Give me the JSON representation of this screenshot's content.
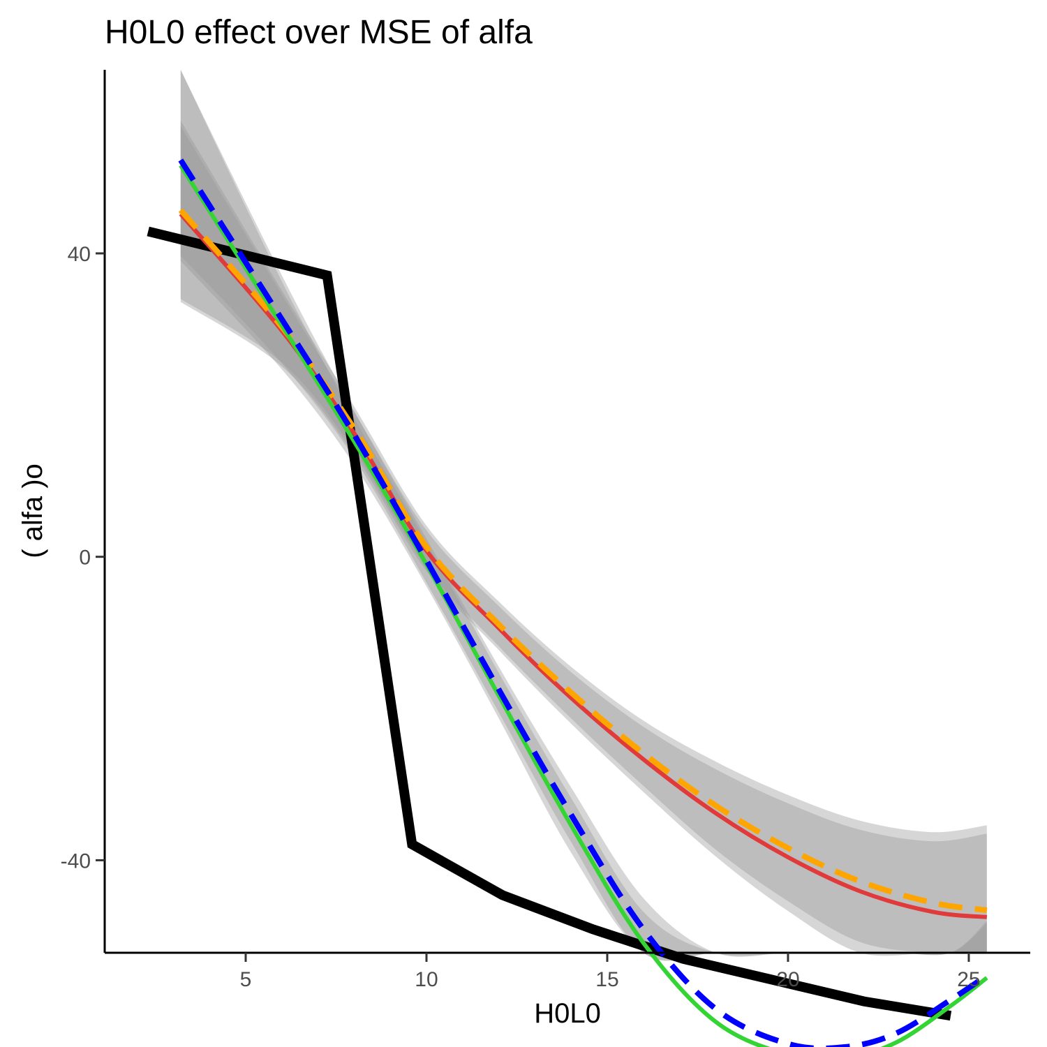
{
  "chart_data": {
    "type": "line",
    "title": "H0L0 effect over MSE of  alfa",
    "xlabel": "H0L0",
    "ylabel": "( alfa )o",
    "xlim": [
      1.1,
      26.7
    ],
    "ylim": [
      -52.2,
      64.2
    ],
    "x_ticks": [
      5,
      10,
      15,
      20,
      25
    ],
    "y_ticks": [
      40,
      0,
      -40
    ],
    "grid": false,
    "legend": "none",
    "series": [
      {
        "color": "#000000",
        "style": "solid-thick",
        "x": [
          2.3,
          7.25,
          9.6,
          12.1,
          14.6,
          17.1,
          19.6,
          22.1,
          24.5
        ],
        "y": [
          42.9,
          37.1,
          -37.9,
          -44.6,
          -49.1,
          -53.0,
          -55.8,
          -58.6,
          -60.5
        ]
      },
      {
        "color": "#e03a3a",
        "style": "solid",
        "fit": "quadratic",
        "x": [
          3.2,
          6,
          8,
          10,
          12,
          14,
          16,
          18,
          20,
          22,
          24,
          25.5
        ],
        "y": [
          45.2,
          29.8,
          16.3,
          0.8,
          -9.4,
          -18.6,
          -26.7,
          -33.8,
          -39.6,
          -44.1,
          -46.8,
          -47.5
        ],
        "band_upper": [
          56.8,
          34.6,
          19.1,
          3.5,
          -6.5,
          -15.2,
          -22.4,
          -28.0,
          -32.5,
          -36.0,
          -37.5,
          -36.5
        ],
        "band_lower": [
          33.6,
          25.1,
          13.5,
          -1.9,
          -12.3,
          -22.0,
          -31.0,
          -39.5,
          -46.7,
          -52.2,
          -56.1,
          -58.5
        ]
      },
      {
        "color": "#ffa500",
        "style": "dashed",
        "fit": "quadratic",
        "x": [
          3.2,
          6,
          8,
          10,
          12,
          14,
          16,
          18,
          20,
          22,
          24,
          25.5
        ],
        "y": [
          45.7,
          30.3,
          16.9,
          1.3,
          -8.9,
          -17.9,
          -25.9,
          -32.8,
          -38.4,
          -42.8,
          -45.6,
          -46.6
        ],
        "band_upper": [
          57.5,
          35.1,
          19.8,
          4.1,
          -5.9,
          -14.5,
          -21.6,
          -27.0,
          -31.4,
          -34.8,
          -36.3,
          -35.4
        ],
        "band_lower": [
          34.0,
          25.6,
          14.0,
          -1.4,
          -11.8,
          -21.3,
          -30.2,
          -38.6,
          -45.4,
          -50.8,
          -54.9,
          -57.7
        ]
      },
      {
        "color": "#35d435",
        "style": "solid",
        "fit": "cubic",
        "x": [
          3.2,
          6,
          8,
          10,
          12,
          14,
          16,
          18,
          20,
          21.6,
          23,
          24.5,
          25.5
        ],
        "y": [
          51.6,
          30.5,
          15.2,
          -1.0,
          -18.3,
          -35.4,
          -50.9,
          -61.3,
          -65.6,
          -66.0,
          -64.0,
          -59.2,
          -55.5
        ],
        "band_upper": [
          64.2,
          36.3,
          18.3,
          1.9,
          -15.3,
          -31.8,
          -46.8,
          -57.1,
          -61.5,
          -62.1,
          -60.0,
          -53.9,
          -48.3
        ],
        "band_lower": [
          39.0,
          24.7,
          12.1,
          -3.9,
          -21.3,
          -39.0,
          -55.0,
          -65.5,
          -69.7,
          -70.1,
          -68.0,
          -64.5,
          -62.7
        ]
      },
      {
        "color": "#0000ff",
        "style": "dashed",
        "fit": "cubic",
        "x": [
          3.2,
          6,
          8,
          10,
          12,
          14,
          16,
          18,
          20,
          21.6,
          23,
          24.5,
          25.5
        ],
        "y": [
          52.3,
          31.3,
          16.1,
          -0.5,
          -17.5,
          -34.0,
          -49.1,
          -59.6,
          -64.2,
          -64.6,
          -62.8,
          -58.4,
          -55.2
        ],
        "band_upper": [
          64.9,
          37.1,
          19.2,
          2.4,
          -14.5,
          -30.4,
          -45.0,
          -55.4,
          -60.1,
          -60.7,
          -58.8,
          -53.1,
          -48.0
        ],
        "band_lower": [
          39.7,
          25.5,
          13.0,
          -3.4,
          -20.5,
          -37.6,
          -53.2,
          -63.8,
          -68.3,
          -68.7,
          -66.8,
          -63.7,
          -62.4
        ]
      }
    ]
  }
}
